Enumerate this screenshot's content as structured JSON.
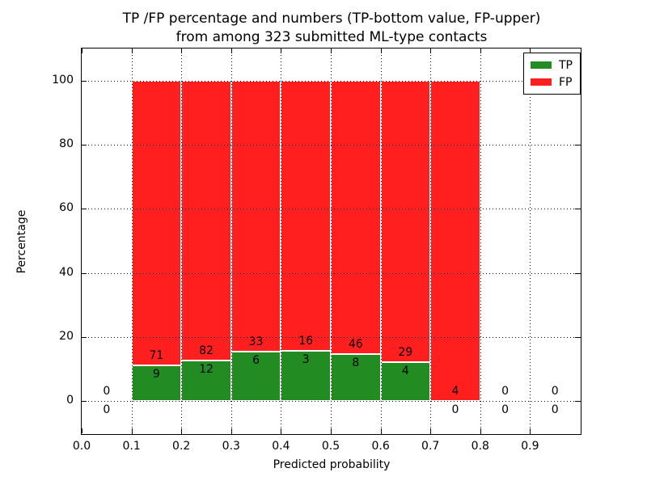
{
  "figure": {
    "title_line1": "TP /FP percentage and numbers (TP-bottom value, FP-upper)",
    "title_line2": "from among 323 submitted ML-type contacts"
  },
  "chart_data": {
    "type": "bar",
    "stacked": true,
    "title": "TP /FP percentage and numbers (TP-bottom value, FP-upper) from among 323 submitted ML-type contacts",
    "xlabel": "Predicted probability",
    "ylabel": "Percentage",
    "xlim": [
      0.0,
      1.0
    ],
    "ylim": [
      -10,
      110
    ],
    "grid": "dotted, drawn above bars",
    "total_contacts": 323,
    "bar_edge_color": "#ffffff",
    "series_colors": {
      "tp": "#228b22",
      "fp": "#ff1f1f"
    },
    "xticks": [
      {
        "v": 0.0,
        "label": "0.0"
      },
      {
        "v": 0.1,
        "label": "0.1"
      },
      {
        "v": 0.2,
        "label": "0.2"
      },
      {
        "v": 0.3,
        "label": "0.3"
      },
      {
        "v": 0.4,
        "label": "0.4"
      },
      {
        "v": 0.5,
        "label": "0.5"
      },
      {
        "v": 0.6,
        "label": "0.6"
      },
      {
        "v": 0.7,
        "label": "0.7"
      },
      {
        "v": 0.8,
        "label": "0.8"
      },
      {
        "v": 0.9,
        "label": "0.9"
      }
    ],
    "yticks": [
      {
        "v": 0,
        "label": "0"
      },
      {
        "v": 20,
        "label": "20"
      },
      {
        "v": 40,
        "label": "40"
      },
      {
        "v": 60,
        "label": "60"
      },
      {
        "v": 80,
        "label": "80"
      },
      {
        "v": 100,
        "label": "100"
      }
    ],
    "legend": {
      "position": "upper-right",
      "entries": [
        {
          "label": "TP",
          "color_key": "tp"
        },
        {
          "label": "FP",
          "color_key": "fp"
        }
      ]
    },
    "bins": [
      {
        "x0": 0.0,
        "x1": 0.1,
        "tp": 0,
        "fp": 0,
        "tp_pct": 0,
        "fp_pct": 0
      },
      {
        "x0": 0.1,
        "x1": 0.2,
        "tp": 9,
        "fp": 71,
        "tp_pct": 11.25,
        "fp_pct": 88.75
      },
      {
        "x0": 0.2,
        "x1": 0.3,
        "tp": 12,
        "fp": 82,
        "tp_pct": 12.77,
        "fp_pct": 87.23
      },
      {
        "x0": 0.3,
        "x1": 0.4,
        "tp": 6,
        "fp": 33,
        "tp_pct": 15.38,
        "fp_pct": 84.62
      },
      {
        "x0": 0.4,
        "x1": 0.5,
        "tp": 3,
        "fp": 16,
        "tp_pct": 15.79,
        "fp_pct": 84.21
      },
      {
        "x0": 0.5,
        "x1": 0.6,
        "tp": 8,
        "fp": 46,
        "tp_pct": 14.81,
        "fp_pct": 85.19
      },
      {
        "x0": 0.6,
        "x1": 0.7,
        "tp": 4,
        "fp": 29,
        "tp_pct": 12.12,
        "fp_pct": 87.88
      },
      {
        "x0": 0.7,
        "x1": 0.8,
        "tp": 0,
        "fp": 4,
        "tp_pct": 0,
        "fp_pct": 100
      },
      {
        "x0": 0.8,
        "x1": 0.9,
        "tp": 0,
        "fp": 0,
        "tp_pct": 0,
        "fp_pct": 0
      },
      {
        "x0": 0.9,
        "x1": 1.0,
        "tp": 0,
        "fp": 0,
        "tp_pct": 0,
        "fp_pct": 0
      }
    ]
  }
}
